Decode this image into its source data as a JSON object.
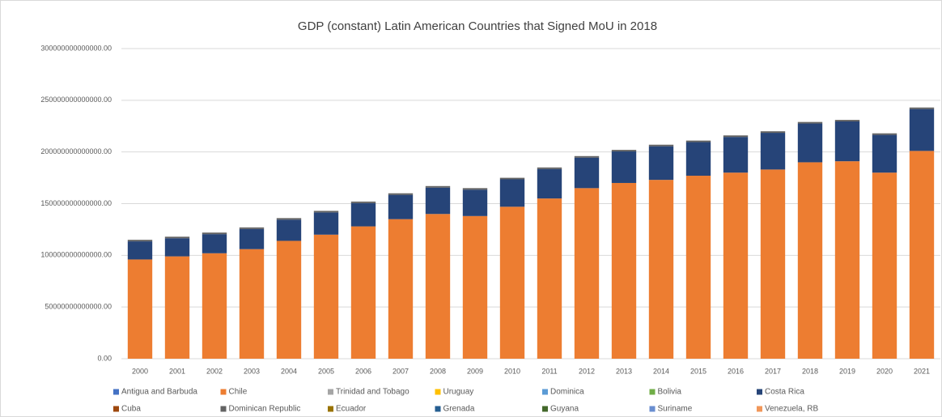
{
  "chart_data": {
    "type": "stacked_bar",
    "title": "GDP (constant) Latin American Countries that Signed MoU in 2018",
    "categories": [
      "2000",
      "2001",
      "2002",
      "2003",
      "2004",
      "2005",
      "2006",
      "2007",
      "2008",
      "2009",
      "2010",
      "2011",
      "2012",
      "2013",
      "2014",
      "2015",
      "2016",
      "2017",
      "2018",
      "2019",
      "2020",
      "2021"
    ],
    "ylim": [
      0,
      300000000000000
    ],
    "yticks": [
      {
        "value": 0,
        "label": "0.00"
      },
      {
        "value": 50000000000000,
        "label": "50000000000000.00"
      },
      {
        "value": 100000000000000,
        "label": "100000000000000.00"
      },
      {
        "value": 150000000000000,
        "label": "150000000000000.00"
      },
      {
        "value": 200000000000000,
        "label": "200000000000000.00"
      },
      {
        "value": 250000000000000,
        "label": "250000000000000.00"
      },
      {
        "value": 300000000000000,
        "label": "300000000000000.00"
      }
    ],
    "grid": true,
    "legend": "bottom",
    "series": [
      {
        "name": "Antigua and Barbuda",
        "color": "#4472c4",
        "values": [
          0,
          0,
          0,
          0,
          0,
          0,
          0,
          0,
          0,
          0,
          0,
          0,
          0,
          0,
          0,
          0,
          0,
          0,
          0,
          0,
          0,
          0
        ]
      },
      {
        "name": "Chile",
        "color": "#ed7d31",
        "values": [
          96000000000000,
          99000000000000,
          102000000000000,
          106000000000000,
          114000000000000,
          120000000000000,
          128000000000000,
          135000000000000,
          140000000000000,
          138000000000000,
          147000000000000,
          155000000000000,
          165000000000000,
          170000000000000,
          173000000000000,
          177000000000000,
          180000000000000,
          183000000000000,
          190000000000000,
          191000000000000,
          180000000000000,
          201000000000000
        ]
      },
      {
        "name": "Trinidad and Tobago",
        "color": "#a5a5a5",
        "values": [
          0,
          0,
          0,
          0,
          0,
          0,
          0,
          0,
          0,
          0,
          0,
          0,
          0,
          0,
          0,
          0,
          0,
          0,
          0,
          0,
          0,
          0
        ]
      },
      {
        "name": "Uruguay",
        "color": "#ffc000",
        "values": [
          0,
          0,
          0,
          0,
          0,
          0,
          0,
          0,
          0,
          0,
          0,
          0,
          0,
          0,
          0,
          0,
          0,
          0,
          0,
          0,
          0,
          0
        ]
      },
      {
        "name": "Dominica",
        "color": "#5b9bd5",
        "values": [
          0,
          0,
          0,
          0,
          0,
          0,
          0,
          0,
          0,
          0,
          0,
          0,
          0,
          0,
          0,
          0,
          0,
          0,
          0,
          0,
          0,
          0
        ]
      },
      {
        "name": "Bolivia",
        "color": "#70ad47",
        "values": [
          0,
          0,
          0,
          0,
          0,
          0,
          0,
          0,
          0,
          0,
          0,
          0,
          0,
          0,
          0,
          0,
          0,
          0,
          0,
          0,
          0,
          0
        ]
      },
      {
        "name": "Costa Rica",
        "color": "#264478",
        "values": [
          17500000000000,
          17500000000000,
          18500000000000,
          19500000000000,
          20500000000000,
          21500000000000,
          22500000000000,
          23500000000000,
          25500000000000,
          25500000000000,
          26500000000000,
          28500000000000,
          29500000000000,
          30500000000000,
          32500000000000,
          32500000000000,
          34500000000000,
          35500000000000,
          37500000000000,
          38500000000000,
          36500000000000,
          40500000000000
        ]
      },
      {
        "name": "Cuba",
        "color": "#9e480e",
        "values": [
          0,
          0,
          0,
          0,
          0,
          0,
          0,
          0,
          0,
          0,
          0,
          0,
          0,
          0,
          0,
          0,
          0,
          0,
          0,
          0,
          0,
          0
        ]
      },
      {
        "name": "Dominican Republic",
        "color": "#636363",
        "values": [
          1500000000000,
          1500000000000,
          1500000000000,
          1500000000000,
          1500000000000,
          1500000000000,
          1500000000000,
          1500000000000,
          1500000000000,
          1500000000000,
          1500000000000,
          1500000000000,
          1500000000000,
          1500000000000,
          1500000000000,
          1500000000000,
          1500000000000,
          1500000000000,
          1500000000000,
          1500000000000,
          1500000000000,
          1500000000000
        ]
      },
      {
        "name": "Ecuador",
        "color": "#997300",
        "values": [
          0,
          0,
          0,
          0,
          0,
          0,
          0,
          0,
          0,
          0,
          0,
          0,
          0,
          0,
          0,
          0,
          0,
          0,
          0,
          0,
          0,
          0
        ]
      },
      {
        "name": "Grenada",
        "color": "#255e91",
        "values": [
          0,
          0,
          0,
          0,
          0,
          0,
          0,
          0,
          0,
          0,
          0,
          0,
          0,
          0,
          0,
          0,
          0,
          0,
          0,
          0,
          0,
          0
        ]
      },
      {
        "name": "Guyana",
        "color": "#43682b",
        "values": [
          0,
          0,
          0,
          0,
          0,
          0,
          0,
          0,
          0,
          0,
          0,
          0,
          0,
          0,
          0,
          0,
          0,
          0,
          0,
          0,
          0,
          0
        ]
      },
      {
        "name": "Suriname",
        "color": "#698ed0",
        "values": [
          0,
          0,
          0,
          0,
          0,
          0,
          0,
          0,
          0,
          0,
          0,
          0,
          0,
          0,
          0,
          0,
          0,
          0,
          0,
          0,
          0,
          0
        ]
      },
      {
        "name": "Venezuela, RB",
        "color": "#f1975a",
        "values": [
          0,
          0,
          0,
          0,
          0,
          0,
          0,
          0,
          0,
          0,
          0,
          0,
          0,
          0,
          0,
          0,
          0,
          0,
          0,
          0,
          0,
          0
        ]
      }
    ]
  }
}
